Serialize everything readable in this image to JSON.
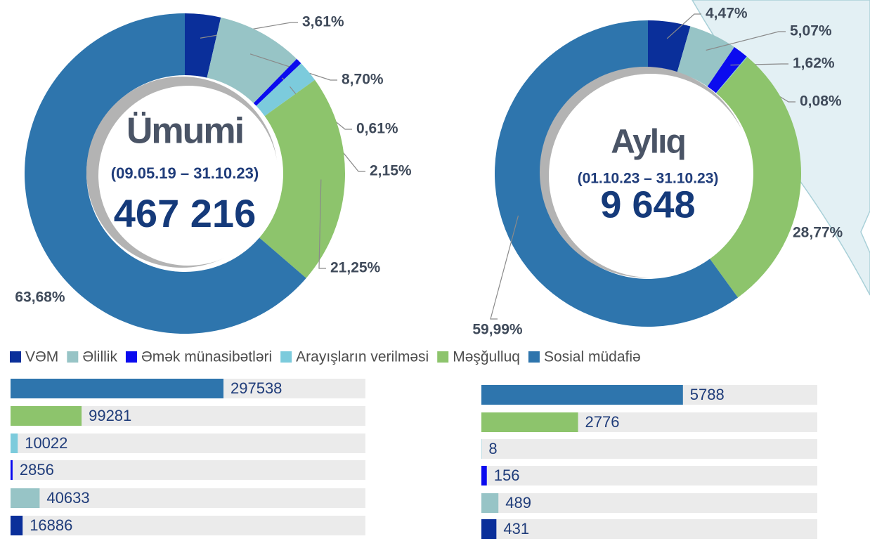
{
  "legend": {
    "labels": [
      "VƏM",
      "Əlillik",
      "Əmək münasibətləri",
      "Arayışların verilməsi",
      "Məşğulluq",
      "Sosial müdafiə"
    ],
    "colors": [
      "#0a2f9a",
      "#97c4c6",
      "#0b0bef",
      "#7ccbdc",
      "#8dc46c",
      "#2e75ad"
    ]
  },
  "chart_data": [
    {
      "type": "pie",
      "title": "Ümumi",
      "subtitle": "(09.05.19 – 31.10.23)",
      "total": {
        "value": 467216,
        "label": "467 216"
      },
      "values": [
        3.61,
        8.7,
        0.61,
        2.15,
        21.25,
        63.68
      ],
      "value_labels": [
        "3,61%",
        "8,70%",
        "0,61%",
        "2,15%",
        "21,25%",
        "63,68%"
      ]
    },
    {
      "type": "pie",
      "title": "Aylıq",
      "subtitle": "(01.10.23 – 31.10.23)",
      "total": {
        "value": 9648,
        "label": "9 648"
      },
      "values": [
        4.47,
        5.07,
        1.62,
        0.08,
        28.77,
        59.99
      ],
      "value_labels": [
        "4,47%",
        "5,07%",
        "1,62%",
        "0,08%",
        "28,77%",
        "59,99%"
      ]
    },
    {
      "type": "barh",
      "values": [
        297538,
        99281,
        10022,
        2856,
        40633,
        16886
      ],
      "colors": [
        "#2e75ad",
        "#8dc46c",
        "#7ccbdc",
        "#0b0bef",
        "#97c4c6",
        "#0a2f9a"
      ]
    },
    {
      "type": "barh",
      "values": [
        5788,
        2776,
        8,
        156,
        489,
        431
      ],
      "colors": [
        "#2e75ad",
        "#8dc46c",
        "#7ccbdc",
        "#0b0bef",
        "#97c4c6",
        "#0a2f9a"
      ]
    }
  ]
}
